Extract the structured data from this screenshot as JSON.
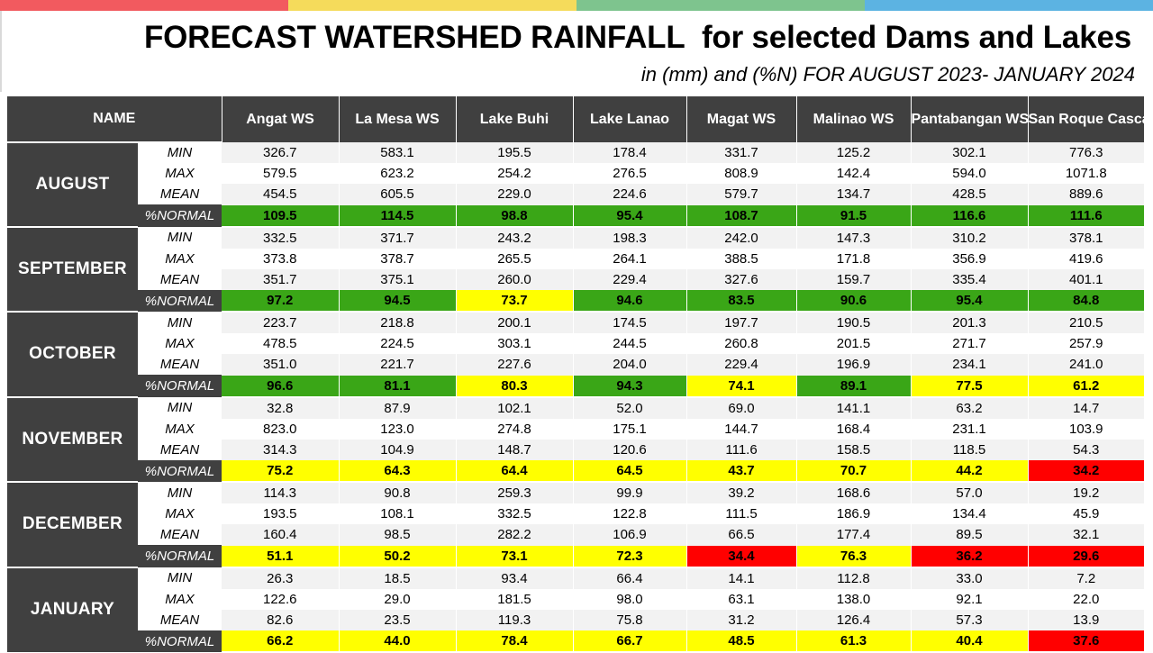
{
  "colors": {
    "bar": [
      "#f25a5f",
      "#f5db5b",
      "#7ec48e",
      "#5cb3e2"
    ],
    "header_bg": "#404040",
    "normal_above_90": "#3aa617",
    "normal_41_80": "#ffff00",
    "normal_below_40": "#ff0000"
  },
  "title": "FORECAST WATERSHED RAINFALL  for selected Dams and Lakes",
  "subtitle": "in (mm) and (%N) FOR AUGUST 2023- JANUARY 2024",
  "headers": [
    "NAME",
    "Angat WS",
    "La Mesa WS",
    "Lake Buhi",
    "Lake Lanao",
    "Magat WS",
    "Malinao WS",
    "Pantabangan WS",
    "San Roque Cascade WS"
  ],
  "row_labels": [
    "MIN",
    "MAX",
    "MEAN",
    "%NORMAL"
  ],
  "months": [
    {
      "name": "AUGUST",
      "rows": [
        [
          "326.7",
          "583.1",
          "195.5",
          "178.4",
          "331.7",
          "125.2",
          "302.1",
          "776.3"
        ],
        [
          "579.5",
          "623.2",
          "254.2",
          "276.5",
          "808.9",
          "142.4",
          "594.0",
          "1071.8"
        ],
        [
          "454.5",
          "605.5",
          "229.0",
          "224.6",
          "579.7",
          "134.7",
          "428.5",
          "889.6"
        ],
        [
          "109.5",
          "114.5",
          "98.8",
          "95.4",
          "108.7",
          "91.5",
          "116.6",
          "111.6"
        ]
      ],
      "status": [
        "green",
        "green",
        "green",
        "green",
        "green",
        "green",
        "green",
        "green"
      ]
    },
    {
      "name": "SEPTEMBER",
      "rows": [
        [
          "332.5",
          "371.7",
          "243.2",
          "198.3",
          "242.0",
          "147.3",
          "310.2",
          "378.1"
        ],
        [
          "373.8",
          "378.7",
          "265.5",
          "264.1",
          "388.5",
          "171.8",
          "356.9",
          "419.6"
        ],
        [
          "351.7",
          "375.1",
          "260.0",
          "229.4",
          "327.6",
          "159.7",
          "335.4",
          "401.1"
        ],
        [
          "97.2",
          "94.5",
          "73.7",
          "94.6",
          "83.5",
          "90.6",
          "95.4",
          "84.8"
        ]
      ],
      "status": [
        "green",
        "green",
        "yellow",
        "green",
        "green",
        "green",
        "green",
        "green"
      ]
    },
    {
      "name": "OCTOBER",
      "rows": [
        [
          "223.7",
          "218.8",
          "200.1",
          "174.5",
          "197.7",
          "190.5",
          "201.3",
          "210.5"
        ],
        [
          "478.5",
          "224.5",
          "303.1",
          "244.5",
          "260.8",
          "201.5",
          "271.7",
          "257.9"
        ],
        [
          "351.0",
          "221.7",
          "227.6",
          "204.0",
          "229.4",
          "196.9",
          "234.1",
          "241.0"
        ],
        [
          "96.6",
          "81.1",
          "80.3",
          "94.3",
          "74.1",
          "89.1",
          "77.5",
          "61.2"
        ]
      ],
      "status": [
        "green",
        "green",
        "yellow",
        "green",
        "yellow",
        "green",
        "yellow",
        "yellow"
      ]
    },
    {
      "name": "NOVEMBER",
      "rows": [
        [
          "32.8",
          "87.9",
          "102.1",
          "52.0",
          "69.0",
          "141.1",
          "63.2",
          "14.7"
        ],
        [
          "823.0",
          "123.0",
          "274.8",
          "175.1",
          "144.7",
          "168.4",
          "231.1",
          "103.9"
        ],
        [
          "314.3",
          "104.9",
          "148.7",
          "120.6",
          "111.6",
          "158.5",
          "118.5",
          "54.3"
        ],
        [
          "75.2",
          "64.3",
          "64.4",
          "64.5",
          "43.7",
          "70.7",
          "44.2",
          "34.2"
        ]
      ],
      "status": [
        "yellow",
        "yellow",
        "yellow",
        "yellow",
        "yellow",
        "yellow",
        "yellow",
        "red"
      ]
    },
    {
      "name": "DECEMBER",
      "rows": [
        [
          "114.3",
          "90.8",
          "259.3",
          "99.9",
          "39.2",
          "168.6",
          "57.0",
          "19.2"
        ],
        [
          "193.5",
          "108.1",
          "332.5",
          "122.8",
          "111.5",
          "186.9",
          "134.4",
          "45.9"
        ],
        [
          "160.4",
          "98.5",
          "282.2",
          "106.9",
          "66.5",
          "177.4",
          "89.5",
          "32.1"
        ],
        [
          "51.1",
          "50.2",
          "73.1",
          "72.3",
          "34.4",
          "76.3",
          "36.2",
          "29.6"
        ]
      ],
      "status": [
        "yellow",
        "yellow",
        "yellow",
        "yellow",
        "red",
        "yellow",
        "red",
        "red"
      ]
    },
    {
      "name": "JANUARY",
      "rows": [
        [
          "26.3",
          "18.5",
          "93.4",
          "66.4",
          "14.1",
          "112.8",
          "33.0",
          "7.2"
        ],
        [
          "122.6",
          "29.0",
          "181.5",
          "98.0",
          "63.1",
          "138.0",
          "92.1",
          "22.0"
        ],
        [
          "82.6",
          "23.5",
          "119.3",
          "75.8",
          "31.2",
          "126.4",
          "57.3",
          "13.9"
        ],
        [
          "66.2",
          "44.0",
          "78.4",
          "66.7",
          "48.5",
          "61.3",
          "40.4",
          "37.6"
        ]
      ],
      "status": [
        "yellow",
        "yellow",
        "yellow",
        "yellow",
        "yellow",
        "yellow",
        "yellow",
        "red"
      ]
    }
  ]
}
